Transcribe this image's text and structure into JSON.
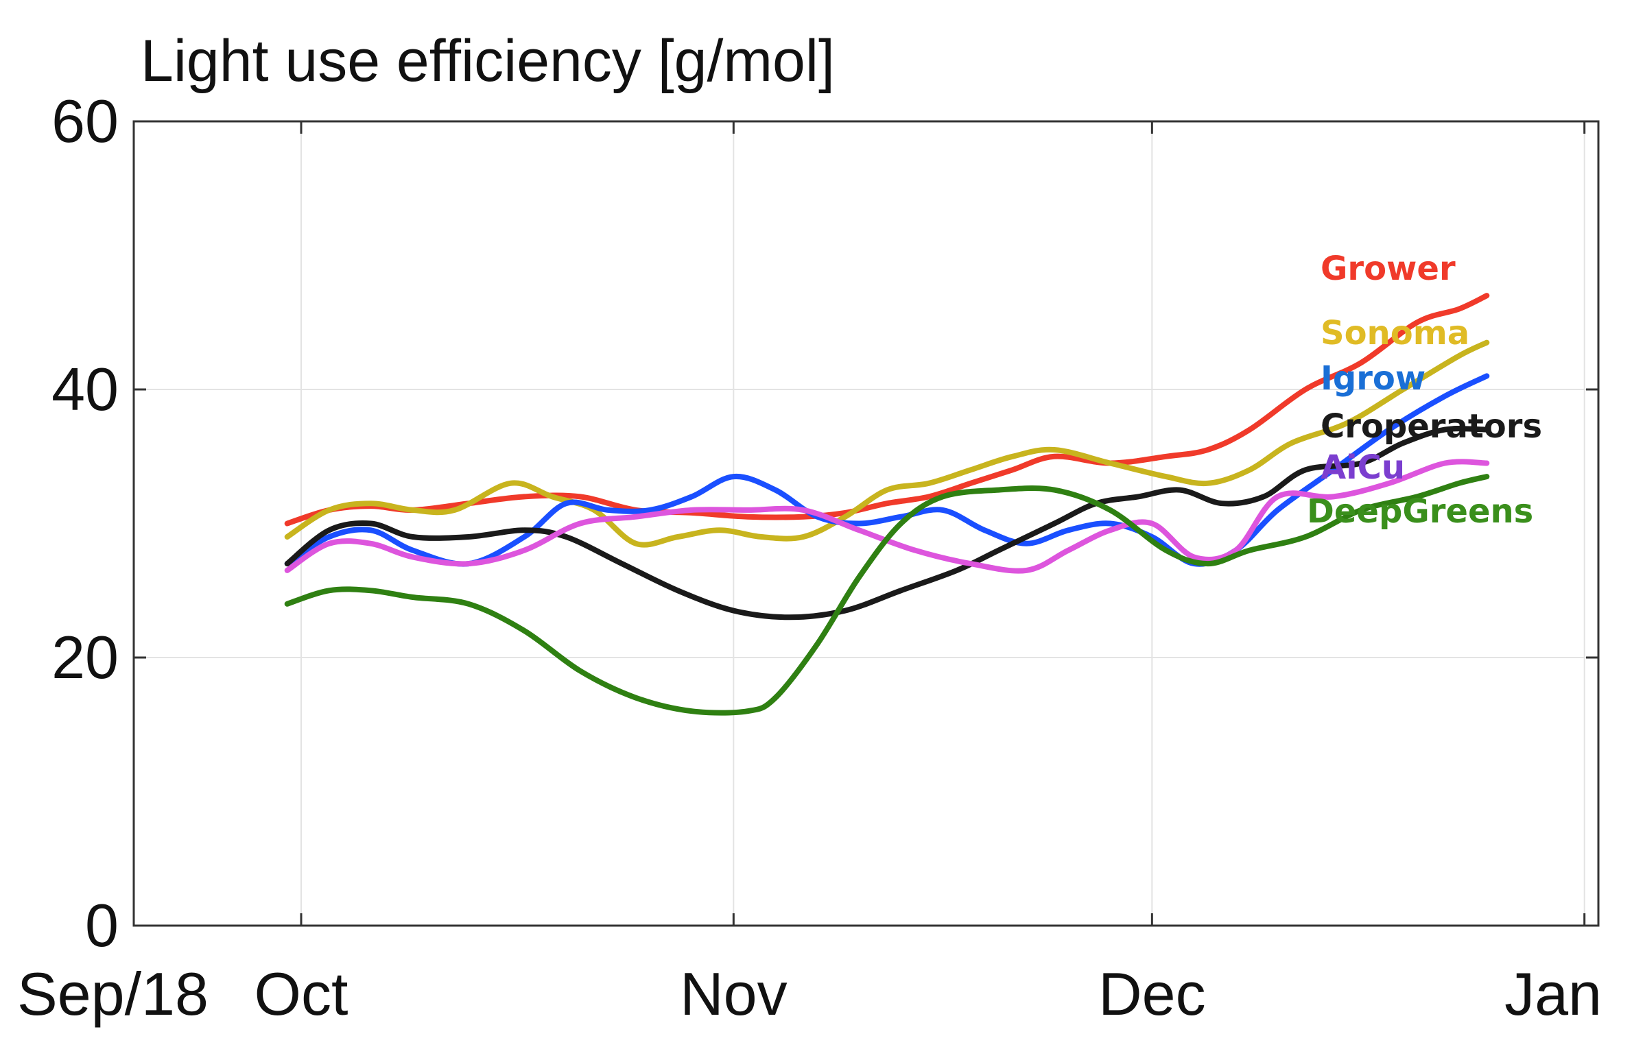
{
  "chart_data": {
    "type": "line",
    "title": "Light use efficiency [g/mol]",
    "xlabel": "",
    "ylabel": "",
    "ylim": [
      0,
      60
    ],
    "xlim": [
      0,
      105
    ],
    "yticks": [
      0,
      20,
      40,
      60
    ],
    "xticks": [
      {
        "value": 0,
        "label": "Sep/18"
      },
      {
        "value": 12,
        "label": "Oct"
      },
      {
        "value": 43,
        "label": "Nov"
      },
      {
        "value": 73,
        "label": "Dec"
      },
      {
        "value": 104,
        "label": "Jan"
      }
    ],
    "x_unit": "days since Sep 18",
    "grid": true,
    "legend_position": "right, inline with line ends",
    "series": [
      {
        "name": "Grower",
        "color": "#f03a2a",
        "points": [
          [
            11,
            30
          ],
          [
            14,
            31
          ],
          [
            17,
            31.3
          ],
          [
            20,
            31
          ],
          [
            24,
            31.5
          ],
          [
            28,
            32
          ],
          [
            32,
            32
          ],
          [
            36,
            31
          ],
          [
            40,
            30.8
          ],
          [
            44,
            30.5
          ],
          [
            48,
            30.5
          ],
          [
            51,
            30.8
          ],
          [
            54,
            31.5
          ],
          [
            57,
            32
          ],
          [
            60,
            33
          ],
          [
            63,
            34
          ],
          [
            66,
            35
          ],
          [
            70,
            34.5
          ],
          [
            74,
            35
          ],
          [
            77,
            35.5
          ],
          [
            80,
            37
          ],
          [
            84,
            40
          ],
          [
            88,
            42
          ],
          [
            92,
            45
          ],
          [
            95,
            46
          ],
          [
            97,
            47
          ]
        ]
      },
      {
        "name": "Sonoma",
        "color": "#c8b41e",
        "points": [
          [
            11,
            29
          ],
          [
            14,
            31
          ],
          [
            17,
            31.5
          ],
          [
            20,
            31
          ],
          [
            23,
            31
          ],
          [
            27,
            33
          ],
          [
            30,
            32
          ],
          [
            33,
            31
          ],
          [
            36,
            28.5
          ],
          [
            39,
            29
          ],
          [
            42,
            29.5
          ],
          [
            45,
            29
          ],
          [
            48,
            29
          ],
          [
            51,
            30.5
          ],
          [
            54,
            32.5
          ],
          [
            57,
            33
          ],
          [
            60,
            34
          ],
          [
            63,
            35
          ],
          [
            66,
            35.5
          ],
          [
            70,
            34.5
          ],
          [
            74,
            33.5
          ],
          [
            77,
            33
          ],
          [
            80,
            34
          ],
          [
            83,
            36
          ],
          [
            87,
            37.5
          ],
          [
            91,
            40
          ],
          [
            95,
            42.5
          ],
          [
            97,
            43.5
          ]
        ]
      },
      {
        "name": "Igrow",
        "color": "#1a4fff",
        "points": [
          [
            11,
            27
          ],
          [
            14,
            29
          ],
          [
            17,
            29.5
          ],
          [
            20,
            28
          ],
          [
            24,
            27
          ],
          [
            28,
            29
          ],
          [
            31,
            31.5
          ],
          [
            34,
            31
          ],
          [
            37,
            31
          ],
          [
            40,
            32
          ],
          [
            43,
            33.5
          ],
          [
            46,
            32.5
          ],
          [
            49,
            30.5
          ],
          [
            52,
            30
          ],
          [
            55,
            30.5
          ],
          [
            58,
            31
          ],
          [
            61,
            29.5
          ],
          [
            64,
            28.5
          ],
          [
            67,
            29.5
          ],
          [
            70,
            30
          ],
          [
            73,
            29
          ],
          [
            76,
            27
          ],
          [
            79,
            28
          ],
          [
            82,
            31
          ],
          [
            86,
            34
          ],
          [
            90,
            37
          ],
          [
            94,
            39.5
          ],
          [
            97,
            41
          ]
        ]
      },
      {
        "name": "Croperators",
        "color": "#1a1a1a",
        "points": [
          [
            11,
            27
          ],
          [
            14,
            29.5
          ],
          [
            17,
            30
          ],
          [
            20,
            29
          ],
          [
            24,
            29
          ],
          [
            28,
            29.5
          ],
          [
            31,
            29
          ],
          [
            35,
            27
          ],
          [
            39,
            25
          ],
          [
            43,
            23.5
          ],
          [
            47,
            23
          ],
          [
            51,
            23.5
          ],
          [
            55,
            25
          ],
          [
            59,
            26.5
          ],
          [
            62,
            28
          ],
          [
            66,
            30
          ],
          [
            69,
            31.5
          ],
          [
            72,
            32
          ],
          [
            75,
            32.5
          ],
          [
            78,
            31.5
          ],
          [
            81,
            32
          ],
          [
            84,
            34
          ],
          [
            88,
            34.5
          ],
          [
            91,
            36
          ],
          [
            94,
            37
          ],
          [
            97,
            37
          ]
        ]
      },
      {
        "name": "AiCu",
        "color": "#dd55dd",
        "points": [
          [
            11,
            26.5
          ],
          [
            14,
            28.5
          ],
          [
            17,
            28.5
          ],
          [
            20,
            27.5
          ],
          [
            24,
            27
          ],
          [
            28,
            28
          ],
          [
            32,
            30
          ],
          [
            36,
            30.5
          ],
          [
            40,
            31
          ],
          [
            44,
            31
          ],
          [
            48,
            31
          ],
          [
            52,
            29.5
          ],
          [
            56,
            28
          ],
          [
            60,
            27
          ],
          [
            64,
            26.5
          ],
          [
            67,
            28
          ],
          [
            70,
            29.5
          ],
          [
            73,
            30
          ],
          [
            76,
            27.5
          ],
          [
            79,
            28
          ],
          [
            82,
            32
          ],
          [
            86,
            32
          ],
          [
            90,
            33
          ],
          [
            94,
            34.5
          ],
          [
            97,
            34.5
          ]
        ]
      },
      {
        "name": "DeepGreens",
        "color": "#2f8012",
        "points": [
          [
            11,
            24
          ],
          [
            14,
            25
          ],
          [
            17,
            25
          ],
          [
            20,
            24.5
          ],
          [
            24,
            24
          ],
          [
            28,
            22
          ],
          [
            32,
            19
          ],
          [
            36,
            17
          ],
          [
            40,
            16
          ],
          [
            44,
            16
          ],
          [
            46,
            17
          ],
          [
            49,
            21
          ],
          [
            52,
            26
          ],
          [
            55,
            30
          ],
          [
            58,
            32
          ],
          [
            62,
            32.5
          ],
          [
            66,
            32.5
          ],
          [
            70,
            31
          ],
          [
            74,
            28
          ],
          [
            77,
            27
          ],
          [
            80,
            28
          ],
          [
            84,
            29
          ],
          [
            88,
            31
          ],
          [
            92,
            32
          ],
          [
            95,
            33
          ],
          [
            97,
            33.5
          ]
        ]
      }
    ]
  }
}
